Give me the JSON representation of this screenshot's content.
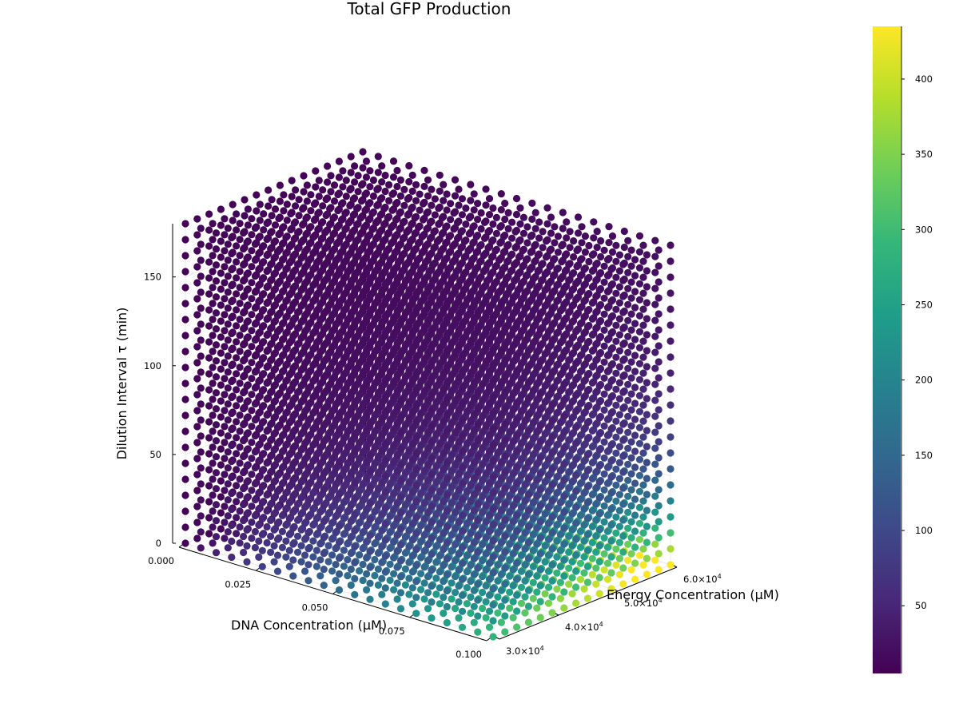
{
  "chart_data": {
    "type": "scatter3d",
    "title": "Total GFP Production",
    "x_axis": {
      "label": "DNA Concentration (μM)",
      "range": [
        0.0,
        0.1
      ],
      "ticks": [
        {
          "value": 0.0,
          "label": "0.000"
        },
        {
          "value": 0.025,
          "label": "0.025"
        },
        {
          "value": 0.05,
          "label": "0.050"
        },
        {
          "value": 0.075,
          "label": "0.075"
        },
        {
          "value": 0.1,
          "label": "0.100"
        }
      ]
    },
    "y_axis": {
      "label": "Energy Concentration (μM)",
      "range": [
        30000,
        60000
      ],
      "ticks": [
        {
          "value": 30000,
          "mantissa": "3.0×10",
          "exp": "4"
        },
        {
          "value": 40000,
          "mantissa": "4.0×10",
          "exp": "4"
        },
        {
          "value": 50000,
          "mantissa": "5.0×10",
          "exp": "4"
        },
        {
          "value": 60000,
          "mantissa": "6.0×10",
          "exp": "4"
        }
      ]
    },
    "z_axis": {
      "label": "Dilution Interval τ (min)",
      "range": [
        0,
        180
      ],
      "ticks": [
        {
          "value": 0,
          "label": "0"
        },
        {
          "value": 50,
          "label": "50"
        },
        {
          "value": 100,
          "label": "100"
        },
        {
          "value": 150,
          "label": "150"
        }
      ]
    },
    "grid": {
      "dna": {
        "start": 0.0,
        "stop": 0.1,
        "count": 21
      },
      "energy": {
        "start": 30000,
        "stop": 60000,
        "count": 16
      },
      "tau": {
        "start": 0,
        "stop": 180,
        "count": 21
      }
    },
    "color_by": "Total GFP Production",
    "colormap": "viridis",
    "colorbar": {
      "range": [
        5,
        435
      ],
      "ticks": [
        {
          "value": 50,
          "label": "50"
        },
        {
          "value": 100,
          "label": "100"
        },
        {
          "value": 150,
          "label": "150"
        },
        {
          "value": 200,
          "label": "200"
        },
        {
          "value": 250,
          "label": "250"
        },
        {
          "value": 300,
          "label": "300"
        },
        {
          "value": 350,
          "label": "350"
        },
        {
          "value": 400,
          "label": "400"
        }
      ]
    },
    "grid_lines": true,
    "legend": "none"
  },
  "colors": {
    "viridis_stops": [
      "#440154",
      "#482878",
      "#3e4989",
      "#31688e",
      "#26828e",
      "#1f9e89",
      "#35b779",
      "#6ece58",
      "#b5de2b",
      "#fde725"
    ]
  }
}
